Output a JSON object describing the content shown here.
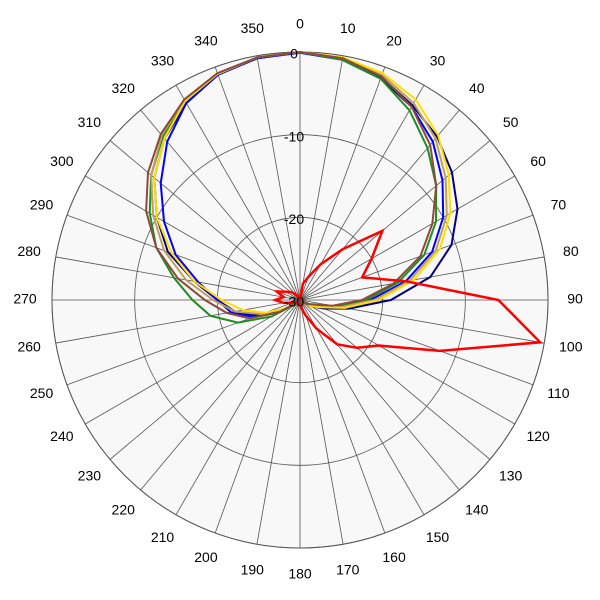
{
  "chart_data": {
    "type": "polar",
    "theta": [
      0,
      10,
      20,
      30,
      40,
      50,
      60,
      70,
      80,
      90,
      100,
      110,
      120,
      130,
      140,
      150,
      160,
      170,
      180,
      190,
      200,
      210,
      220,
      230,
      240,
      250,
      260,
      270,
      280,
      290,
      300,
      310,
      320,
      330,
      340,
      350
    ],
    "rlim": [
      -30,
      0
    ],
    "rticks": [
      -30,
      -20,
      -10,
      0
    ],
    "grid": true,
    "series": [
      {
        "color": "#000080",
        "values": [
          0,
          -0.4,
          -1.3,
          -2.8,
          -4.2,
          -6,
          -8,
          -10.5,
          -14,
          -19,
          -24,
          -27,
          -28.5,
          -29.5,
          -29.5,
          -29.5,
          -29.5,
          -29.5,
          -29.5,
          -29.5,
          -29.5,
          -29.5,
          -29.5,
          -29.5,
          -27.5,
          -24.5,
          -22,
          -20,
          -17,
          -13,
          -10,
          -7,
          -4.5,
          -2.5,
          -1,
          -0.3
        ]
      },
      {
        "color": "#0000ff",
        "values": [
          -0.1,
          -0.5,
          -1.5,
          -3,
          -5,
          -7.5,
          -10,
          -13,
          -17,
          -21.5,
          -25.5,
          -28,
          -29,
          -29.5,
          -29.5,
          -29.5,
          -29.5,
          -29.5,
          -29.5,
          -29.5,
          -29.5,
          -29.5,
          -29.5,
          -29.5,
          -27.5,
          -24,
          -21.5,
          -20,
          -17.5,
          -14,
          -11,
          -8,
          -5,
          -2.5,
          -1,
          -0.3
        ]
      },
      {
        "color": "#228b22",
        "values": [
          0,
          -0.5,
          -1.5,
          -3.5,
          -6,
          -8.5,
          -11,
          -14,
          -18,
          -22,
          -25.5,
          -28,
          -29,
          -29.5,
          -29.5,
          -29.5,
          -29.5,
          -29.5,
          -29.5,
          -29.5,
          -29.5,
          -29.5,
          -29.5,
          -29,
          -26,
          -22,
          -19,
          -17,
          -14.5,
          -11.5,
          -9,
          -6.5,
          -4.2,
          -2.2,
          -0.9,
          -0.2
        ]
      },
      {
        "color": "#c0a060",
        "values": [
          0,
          -0.3,
          -1,
          -2.5,
          -4.5,
          -7,
          -9.5,
          -12.5,
          -16.5,
          -21,
          -25,
          -27.5,
          -28.5,
          -29.5,
          -29.5,
          -29.5,
          -29.5,
          -29.5,
          -29.5,
          -29.5,
          -29.5,
          -29.5,
          -29.5,
          -29.5,
          -28,
          -25,
          -22,
          -19.5,
          -16,
          -12.5,
          -9.5,
          -6.5,
          -4,
          -2,
          -0.8,
          -0.2
        ]
      },
      {
        "color": "#ffdd00",
        "values": [
          0,
          -0.2,
          -0.8,
          -2,
          -4,
          -6.5,
          -9,
          -12,
          -16,
          -20.5,
          -24.5,
          -27.5,
          -28.5,
          -29.5,
          -29.5,
          -29.5,
          -29.5,
          -29.5,
          -29.5,
          -29.5,
          -29.5,
          -29.5,
          -29.5,
          -29.5,
          -28,
          -25.5,
          -23,
          -20.5,
          -17,
          -13.5,
          -10,
          -7,
          -4.5,
          -2.2,
          -0.9,
          -0.2
        ]
      },
      {
        "color": "#8b4a3a",
        "values": [
          0,
          -0.3,
          -1.2,
          -3,
          -5.5,
          -8.5,
          -11.5,
          -14.5,
          -18.5,
          -22.5,
          -26,
          -28.5,
          -29,
          -29.5,
          -29.5,
          -29.5,
          -29.5,
          -29.5,
          -29.5,
          -29.5,
          -29.5,
          -29.5,
          -29.5,
          -29.5,
          -27,
          -23.5,
          -21,
          -18.5,
          -15,
          -11.5,
          -8.5,
          -6,
          -3.8,
          -2,
          -0.8,
          -0.2
        ]
      },
      {
        "color": "#ff0000",
        "values": [
          -30,
          -28,
          -27,
          -25,
          -22,
          -17,
          -20,
          -22,
          -17,
          -6,
          -0.5,
          -12,
          -19,
          -21,
          -23,
          -26,
          -28,
          -29,
          -29.5,
          -29.5,
          -29.5,
          -29.5,
          -29.5,
          -29.5,
          -29.5,
          -29,
          -28,
          -27,
          -28,
          -27,
          -28,
          -28.5,
          -29,
          -29.5,
          -29.5,
          -29.5
        ]
      }
    ]
  }
}
